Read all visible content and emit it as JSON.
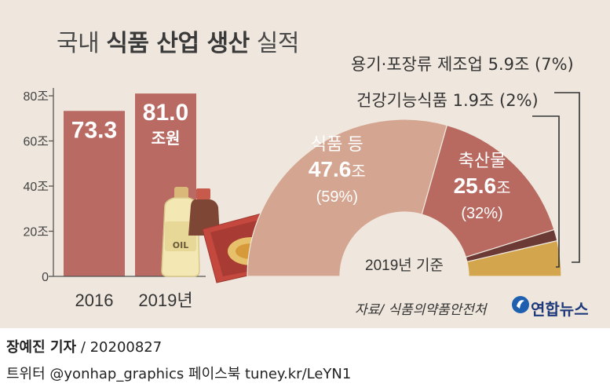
{
  "title": {
    "part1": "국내",
    "part2": "식품 산업 생산",
    "part3": "실적"
  },
  "colors": {
    "bar": "#b96a63",
    "food": "#d4a591",
    "livestock": "#b86a61",
    "health": "#6b3a34",
    "container": "#d3a64e",
    "background": "#efe7dd"
  },
  "chart_data": [
    {
      "type": "bar",
      "categories": [
        "2016",
        "2019년"
      ],
      "values": [
        73.3,
        81.0
      ],
      "value_labels": [
        "73.3",
        "81.0"
      ],
      "value_unit": "조원",
      "y_ticks": [
        "0",
        "20조",
        "40조",
        "60조",
        "80조"
      ],
      "y_tick_values": [
        0,
        20,
        40,
        60,
        80
      ],
      "ylim": [
        0,
        85
      ]
    },
    {
      "type": "pie",
      "variant": "half-donut",
      "note": "2019년 기준",
      "slices": [
        {
          "label": "식품 등",
          "value": 47.6,
          "value_label": "47.6",
          "unit": "조",
          "percent": "(59%)"
        },
        {
          "label": "축산물",
          "value": 25.6,
          "value_label": "25.6",
          "unit": "조",
          "percent": "(32%)"
        },
        {
          "label": "건강기능식품",
          "value": 1.9,
          "value_label": "1.9조",
          "percent": "(2%)"
        },
        {
          "label": "용기·포장류 제조업",
          "value": 5.9,
          "value_label": "5.9조",
          "percent": "(7%)"
        }
      ]
    }
  ],
  "source": "자료/ 식품의약품안전처",
  "logo": "연합뉴스",
  "byline": {
    "name": "장예진 기자",
    "date": "/ 20200827"
  },
  "social": "트위터 @yonhap_graphics  페이스북 tuney.kr/LeYN1"
}
